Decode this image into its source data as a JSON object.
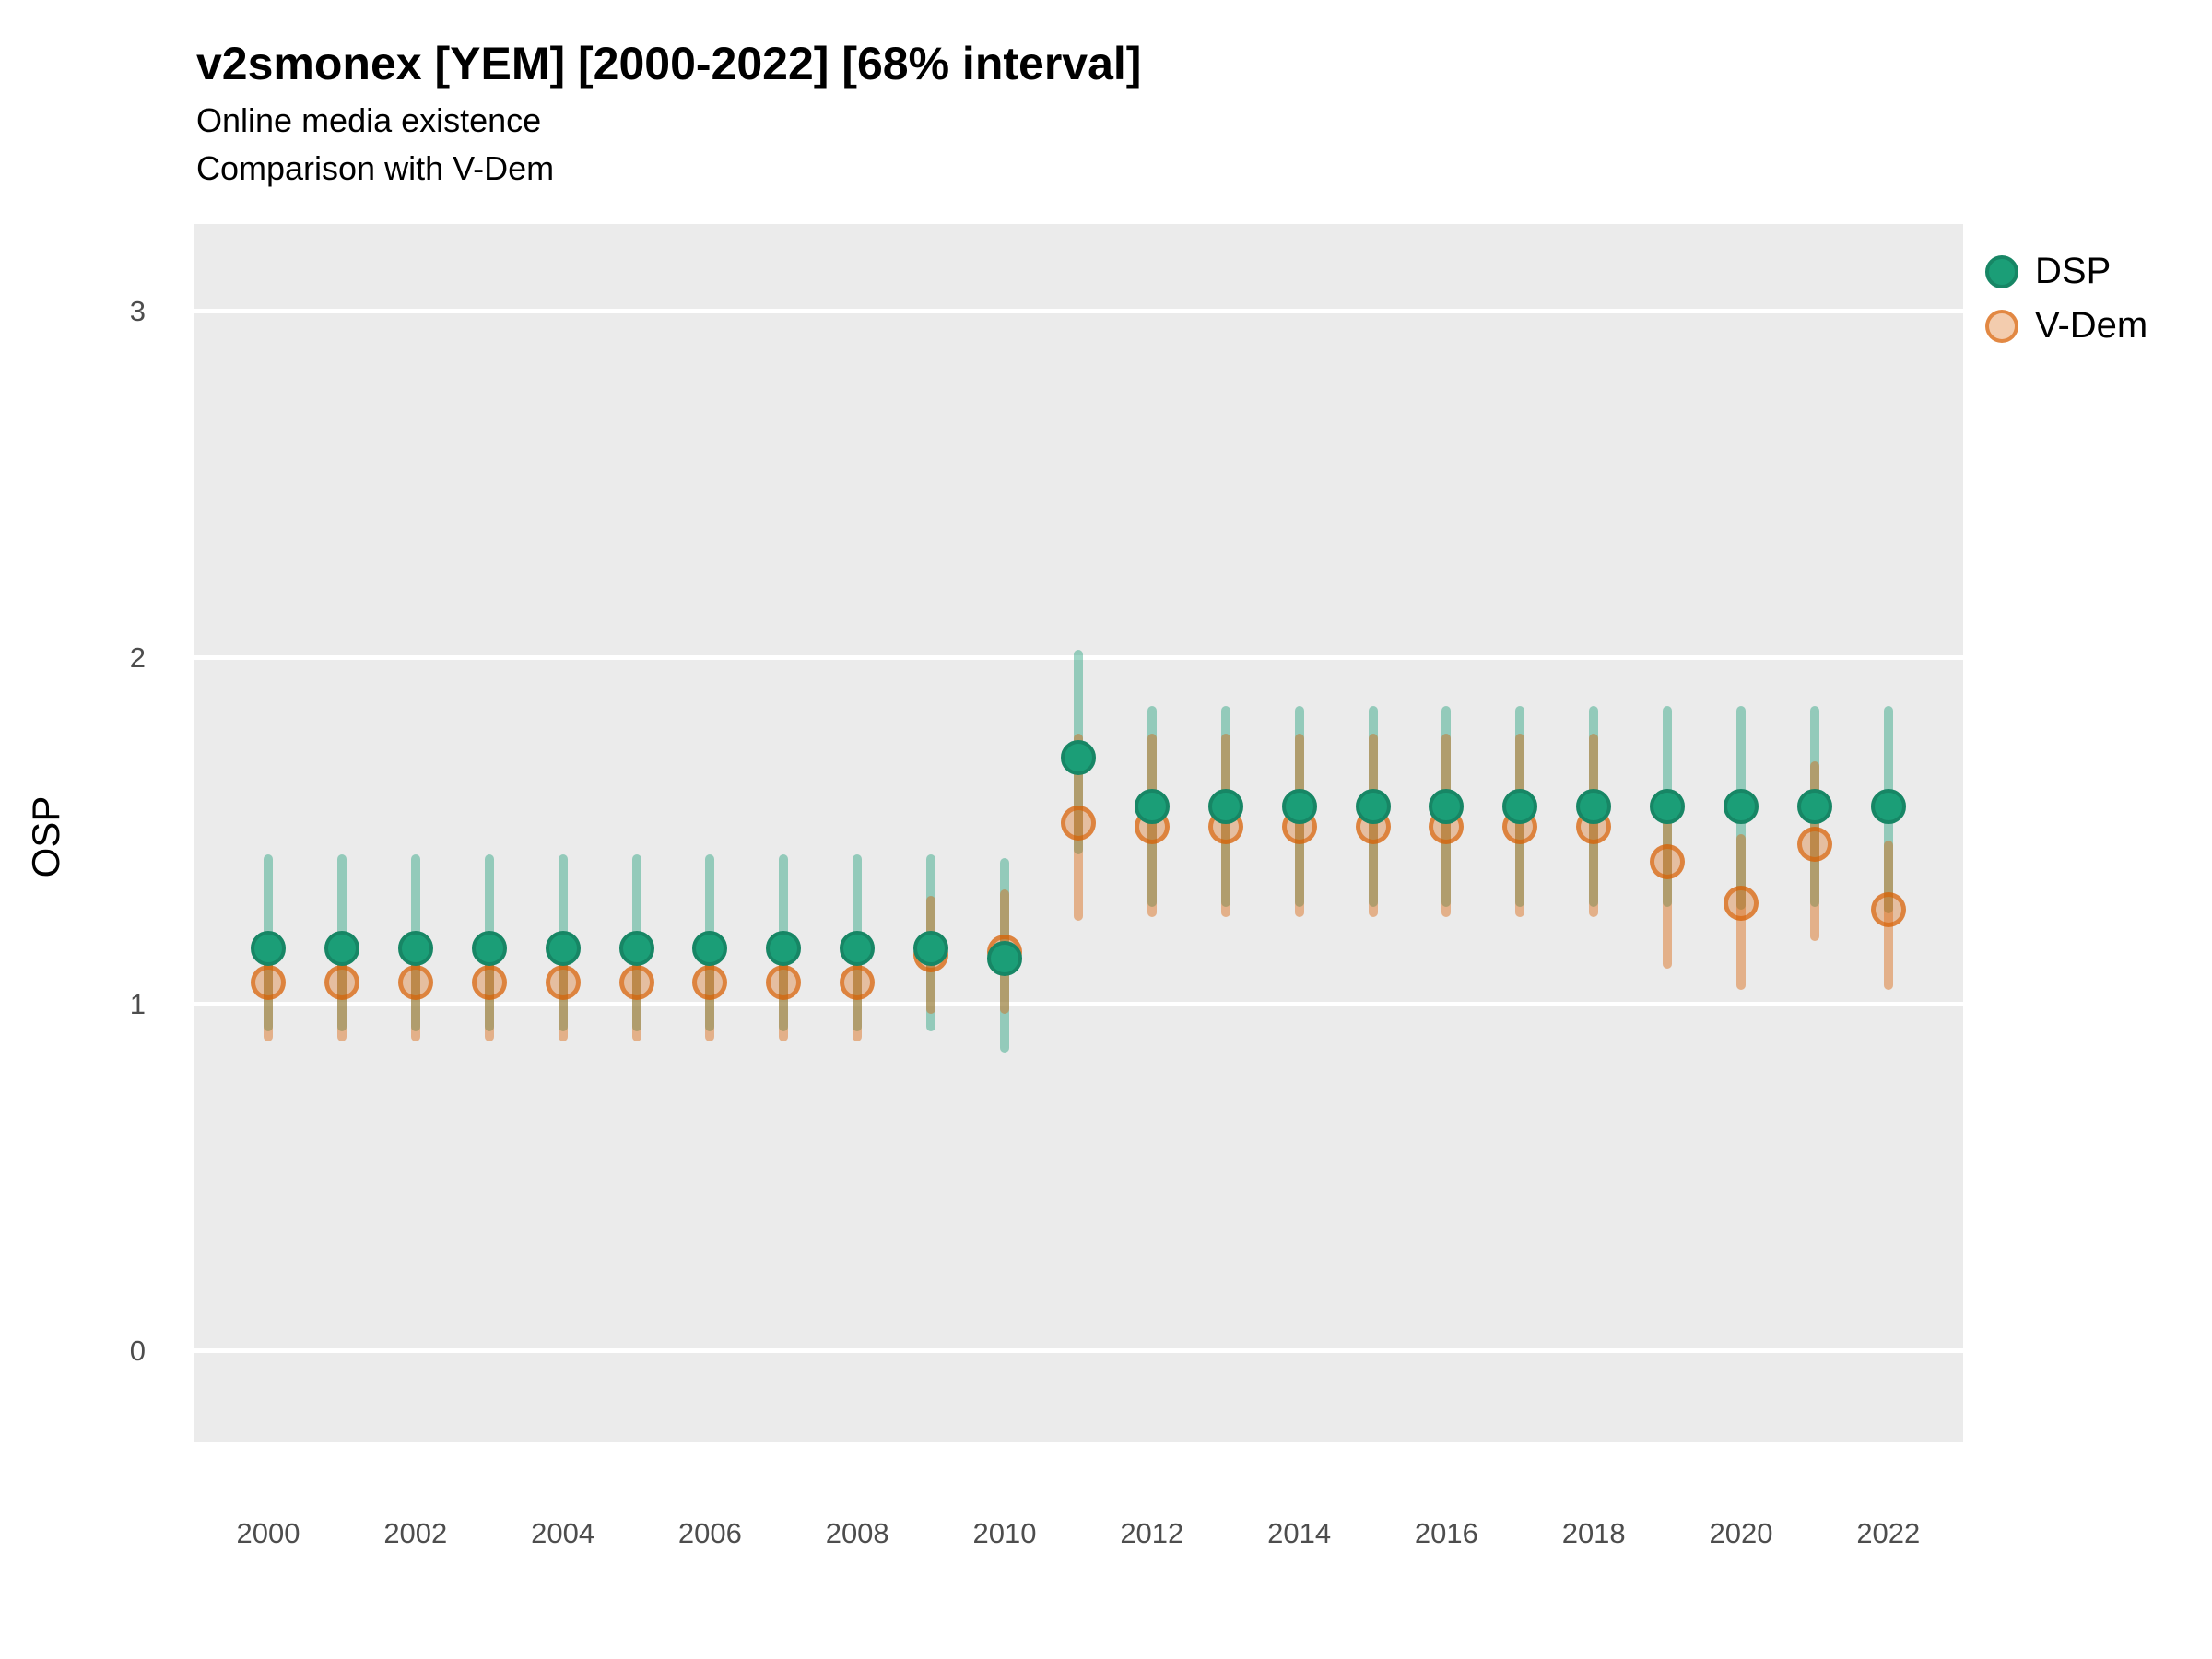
{
  "title": "v2smonex [YEM] [2000-2022] [68% interval]",
  "subtitle1": "Online media existence",
  "subtitle2": "Comparison with V-Dem",
  "y_axis": {
    "label": "OSP",
    "ticks": [
      {
        "label": "3",
        "value": 3
      },
      {
        "label": "2",
        "value": 2
      },
      {
        "label": "1",
        "value": 1
      },
      {
        "label": "0",
        "value": 0
      }
    ]
  },
  "x_axis": {
    "tick_labels": [
      "2000",
      "2002",
      "2004",
      "2006",
      "2008",
      "2010",
      "2012",
      "2014",
      "2016",
      "2018",
      "2020",
      "2022"
    ]
  },
  "legend": [
    {
      "label": "DSP",
      "color": "#1B9E77"
    },
    {
      "label": "V-Dem",
      "color": "#D95F02"
    }
  ],
  "colors": {
    "dsp": "#1B9E77",
    "vdem": "#D95F02",
    "panel_background": "#EBEBEB",
    "gridline": "#FFFFFF",
    "tick_text": "#4D4D4D"
  },
  "chart_data": {
    "type": "scatter",
    "subtype": "pointrange",
    "title": "v2smonex [YEM] [2000-2022] [68% interval]",
    "subtitle": [
      "Online media existence",
      "Comparison with V-Dem"
    ],
    "xlabel": "",
    "ylabel": "OSP",
    "ylim": [
      -0.27,
      3.25
    ],
    "yticks": [
      0,
      1,
      2,
      3
    ],
    "interval": "68%",
    "grid": "major-horizontal-white-on-gray",
    "legend_position": "right-top",
    "x": [
      2000,
      2001,
      2002,
      2003,
      2004,
      2005,
      2006,
      2007,
      2008,
      2009,
      2010,
      2011,
      2012,
      2013,
      2014,
      2015,
      2016,
      2017,
      2018,
      2019,
      2020,
      2021,
      2022
    ],
    "series": [
      {
        "name": "DSP",
        "color": "#1B9E77",
        "values": [
          1.16,
          1.16,
          1.16,
          1.16,
          1.16,
          1.16,
          1.16,
          1.16,
          1.16,
          1.16,
          1.13,
          1.71,
          1.57,
          1.57,
          1.57,
          1.57,
          1.57,
          1.57,
          1.57,
          1.57,
          1.57,
          1.57,
          1.57
        ],
        "lo": [
          0.92,
          0.92,
          0.92,
          0.92,
          0.92,
          0.92,
          0.92,
          0.92,
          0.92,
          0.92,
          0.86,
          1.43,
          1.28,
          1.28,
          1.28,
          1.28,
          1.28,
          1.28,
          1.28,
          1.28,
          1.27,
          1.28,
          1.26
        ],
        "hi": [
          1.43,
          1.43,
          1.43,
          1.43,
          1.43,
          1.43,
          1.43,
          1.43,
          1.43,
          1.43,
          1.42,
          2.02,
          1.86,
          1.86,
          1.86,
          1.86,
          1.86,
          1.86,
          1.86,
          1.86,
          1.86,
          1.86,
          1.86
        ]
      },
      {
        "name": "V-Dem",
        "color": "#D95F02",
        "values": [
          1.06,
          1.06,
          1.06,
          1.06,
          1.06,
          1.06,
          1.06,
          1.06,
          1.06,
          1.14,
          1.15,
          1.52,
          1.51,
          1.51,
          1.51,
          1.51,
          1.51,
          1.51,
          1.51,
          1.41,
          1.29,
          1.46,
          1.27
        ],
        "lo": [
          0.89,
          0.89,
          0.89,
          0.89,
          0.89,
          0.89,
          0.89,
          0.89,
          0.89,
          0.97,
          0.97,
          1.24,
          1.25,
          1.25,
          1.25,
          1.25,
          1.25,
          1.25,
          1.25,
          1.1,
          1.04,
          1.18,
          1.04
        ],
        "hi": [
          1.2,
          1.2,
          1.2,
          1.2,
          1.2,
          1.2,
          1.2,
          1.2,
          1.2,
          1.31,
          1.33,
          1.78,
          1.78,
          1.78,
          1.78,
          1.78,
          1.78,
          1.78,
          1.78,
          1.55,
          1.49,
          1.7,
          1.47
        ]
      }
    ]
  }
}
